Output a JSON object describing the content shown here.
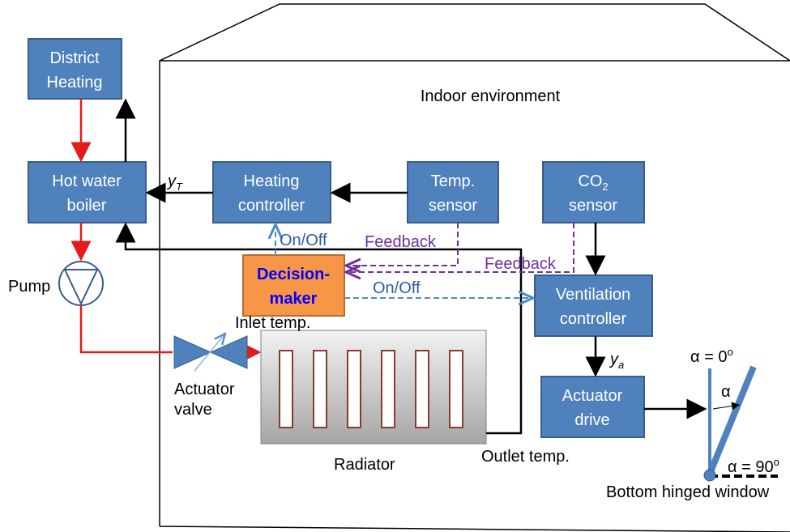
{
  "title": "Indoor environment",
  "nodes": [
    {
      "lines": [
        "District",
        "Heating"
      ]
    },
    {
      "lines": [
        "Hot water",
        "boiler"
      ]
    },
    {
      "lines": [
        "Heating",
        "controller"
      ]
    },
    {
      "lines": [
        "Temp.",
        "sensor"
      ]
    },
    {
      "lines": [
        "Ventilation",
        "controller"
      ]
    },
    {
      "lines": [
        "Actuator",
        "drive"
      ]
    }
  ],
  "co2_sensor": {
    "main": "CO",
    "sub": "2",
    "line2": "sensor"
  },
  "decision_maker": {
    "lines": [
      "Decision-",
      "maker"
    ]
  },
  "signals": {
    "y_T": {
      "main": "y",
      "sub": "T"
    },
    "y_a": {
      "main": "y",
      "sub": "a"
    },
    "on_off_heating": "On/Off",
    "on_off_ventilation": "On/Off",
    "feedback_temp": "Feedback",
    "feedback_co2": "Feedback"
  },
  "labels": {
    "pump": "Pump",
    "inlet_temp": "Inlet temp.",
    "actuator_valve": [
      "Actuator",
      "valve"
    ],
    "radiator": "Radiator",
    "outlet_temp": "Outlet temp.",
    "window": "Bottom hinged window"
  },
  "angles": {
    "closed": {
      "main": "α = 0",
      "sup": "o"
    },
    "alpha": "α",
    "open": {
      "main": "α = 90",
      "sup": "o"
    }
  }
}
